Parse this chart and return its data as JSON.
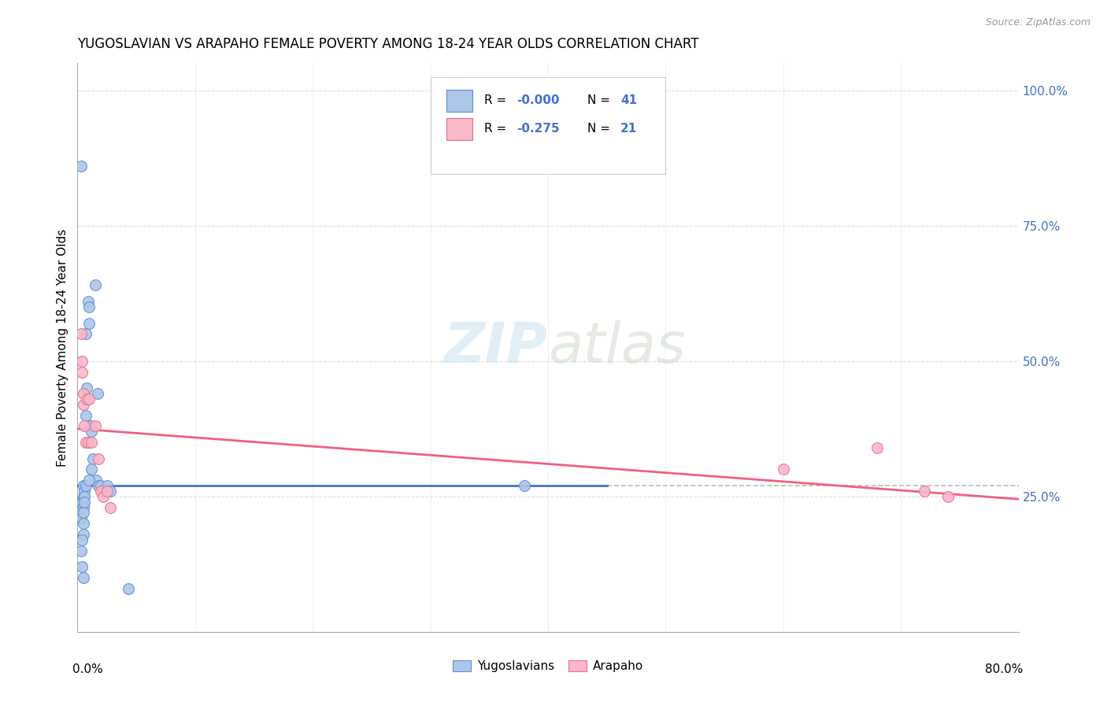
{
  "title": "YUGOSLAVIAN VS ARAPAHO FEMALE POVERTY AMONG 18-24 YEAR OLDS CORRELATION CHART",
  "source": "Source: ZipAtlas.com",
  "ylabel": "Female Poverty Among 18-24 Year Olds",
  "xlim": [
    0.0,
    0.8
  ],
  "ylim": [
    0.0,
    1.05
  ],
  "color_yug_fill": "#aec6e8",
  "color_yug_edge": "#5b8fd4",
  "color_ara_fill": "#f7b8c8",
  "color_ara_edge": "#e87090",
  "color_line_yug": "#4472c4",
  "color_line_ara": "#f06080",
  "color_dashed": "#bbbbbb",
  "color_grid": "#dddddd",
  "color_ytick": "#4472c4",
  "watermark_color": "#d8e8f0",
  "yug_x": [
    0.002,
    0.003,
    0.003,
    0.004,
    0.004,
    0.005,
    0.005,
    0.005,
    0.005,
    0.005,
    0.005,
    0.006,
    0.006,
    0.007,
    0.007,
    0.008,
    0.009,
    0.01,
    0.01,
    0.011,
    0.012,
    0.013,
    0.015,
    0.016,
    0.017,
    0.018,
    0.02,
    0.022,
    0.025,
    0.028,
    0.003,
    0.004,
    0.005,
    0.006,
    0.007,
    0.008,
    0.009,
    0.01,
    0.012,
    0.38,
    0.043
  ],
  "yug_y": [
    0.22,
    0.21,
    0.15,
    0.24,
    0.12,
    0.27,
    0.25,
    0.23,
    0.2,
    0.18,
    0.1,
    0.26,
    0.25,
    0.4,
    0.27,
    0.43,
    0.61,
    0.6,
    0.57,
    0.38,
    0.37,
    0.32,
    0.64,
    0.28,
    0.44,
    0.27,
    0.27,
    0.26,
    0.27,
    0.26,
    0.86,
    0.17,
    0.22,
    0.24,
    0.55,
    0.45,
    0.35,
    0.28,
    0.3,
    0.27,
    0.08
  ],
  "ara_x": [
    0.003,
    0.004,
    0.004,
    0.005,
    0.005,
    0.006,
    0.007,
    0.008,
    0.009,
    0.01,
    0.012,
    0.015,
    0.018,
    0.02,
    0.022,
    0.025,
    0.028,
    0.6,
    0.68,
    0.72,
    0.74
  ],
  "ara_y": [
    0.55,
    0.5,
    0.48,
    0.44,
    0.42,
    0.38,
    0.35,
    0.43,
    0.35,
    0.43,
    0.35,
    0.38,
    0.32,
    0.26,
    0.25,
    0.26,
    0.23,
    0.3,
    0.34,
    0.26,
    0.25
  ],
  "yug_line_y": 0.27,
  "yug_line_x_end": 0.45,
  "ara_line_x0": 0.0,
  "ara_line_x1": 0.8,
  "ara_line_y0": 0.375,
  "ara_line_y1": 0.245
}
